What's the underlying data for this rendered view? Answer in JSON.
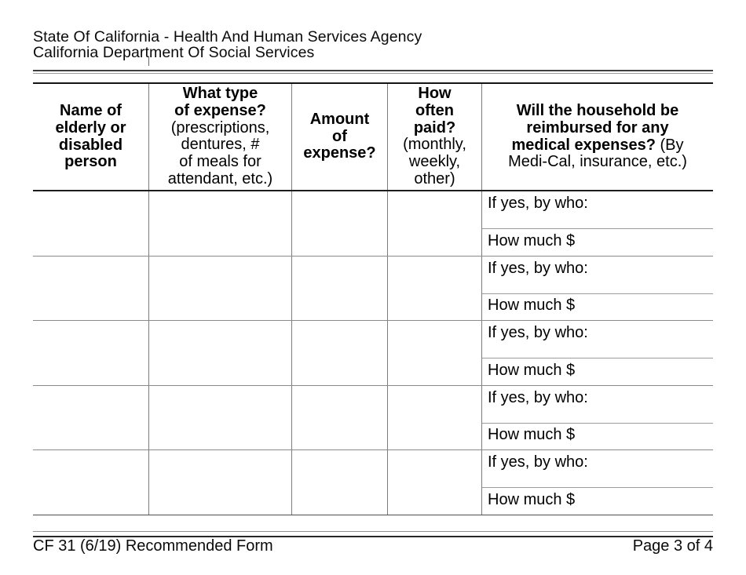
{
  "page_header": {
    "agency_line": "State Of California - Health And Human Services Agency",
    "department_line": "California Department Of Social Services"
  },
  "table": {
    "columns": [
      {
        "title_lines": [
          "Name of",
          "elderly or",
          "disabled",
          "person"
        ]
      },
      {
        "title_lines": [
          "What type",
          "of expense?"
        ],
        "note_lines": [
          "(prescriptions,",
          "dentures, #",
          "of meals for",
          "attendant, etc.)"
        ]
      },
      {
        "title_lines": [
          "Amount",
          "of",
          "expense?"
        ]
      },
      {
        "title_lines": [
          "How",
          "often",
          "paid?"
        ],
        "note_lines": [
          "(monthly,",
          "weekly,",
          "other)"
        ]
      },
      {
        "title_rich_lines": [
          {
            "bold": "Will the household be",
            "rest": ""
          },
          {
            "bold": "reimbursed for any",
            "rest": ""
          },
          {
            "bold": "medical expenses?",
            "rest": " (By"
          },
          {
            "bold": "",
            "rest": "Medi-Cal, insurance, etc.)"
          }
        ]
      }
    ],
    "rows": [
      {
        "reimbursed_by_label": "If yes, by who:",
        "amount_label": "How much $"
      },
      {
        "reimbursed_by_label": "If yes, by who:",
        "amount_label": "How much $"
      },
      {
        "reimbursed_by_label": "If yes, by who:",
        "amount_label": "How much $"
      },
      {
        "reimbursed_by_label": "If yes, by who:",
        "amount_label": "How much $"
      },
      {
        "reimbursed_by_label": "If yes, by who:",
        "amount_label": "How much $"
      }
    ]
  },
  "page_footer": {
    "form_id": "CF 31 (6/19) Recommended Form",
    "page_indicator": "Page 3 of 4"
  }
}
